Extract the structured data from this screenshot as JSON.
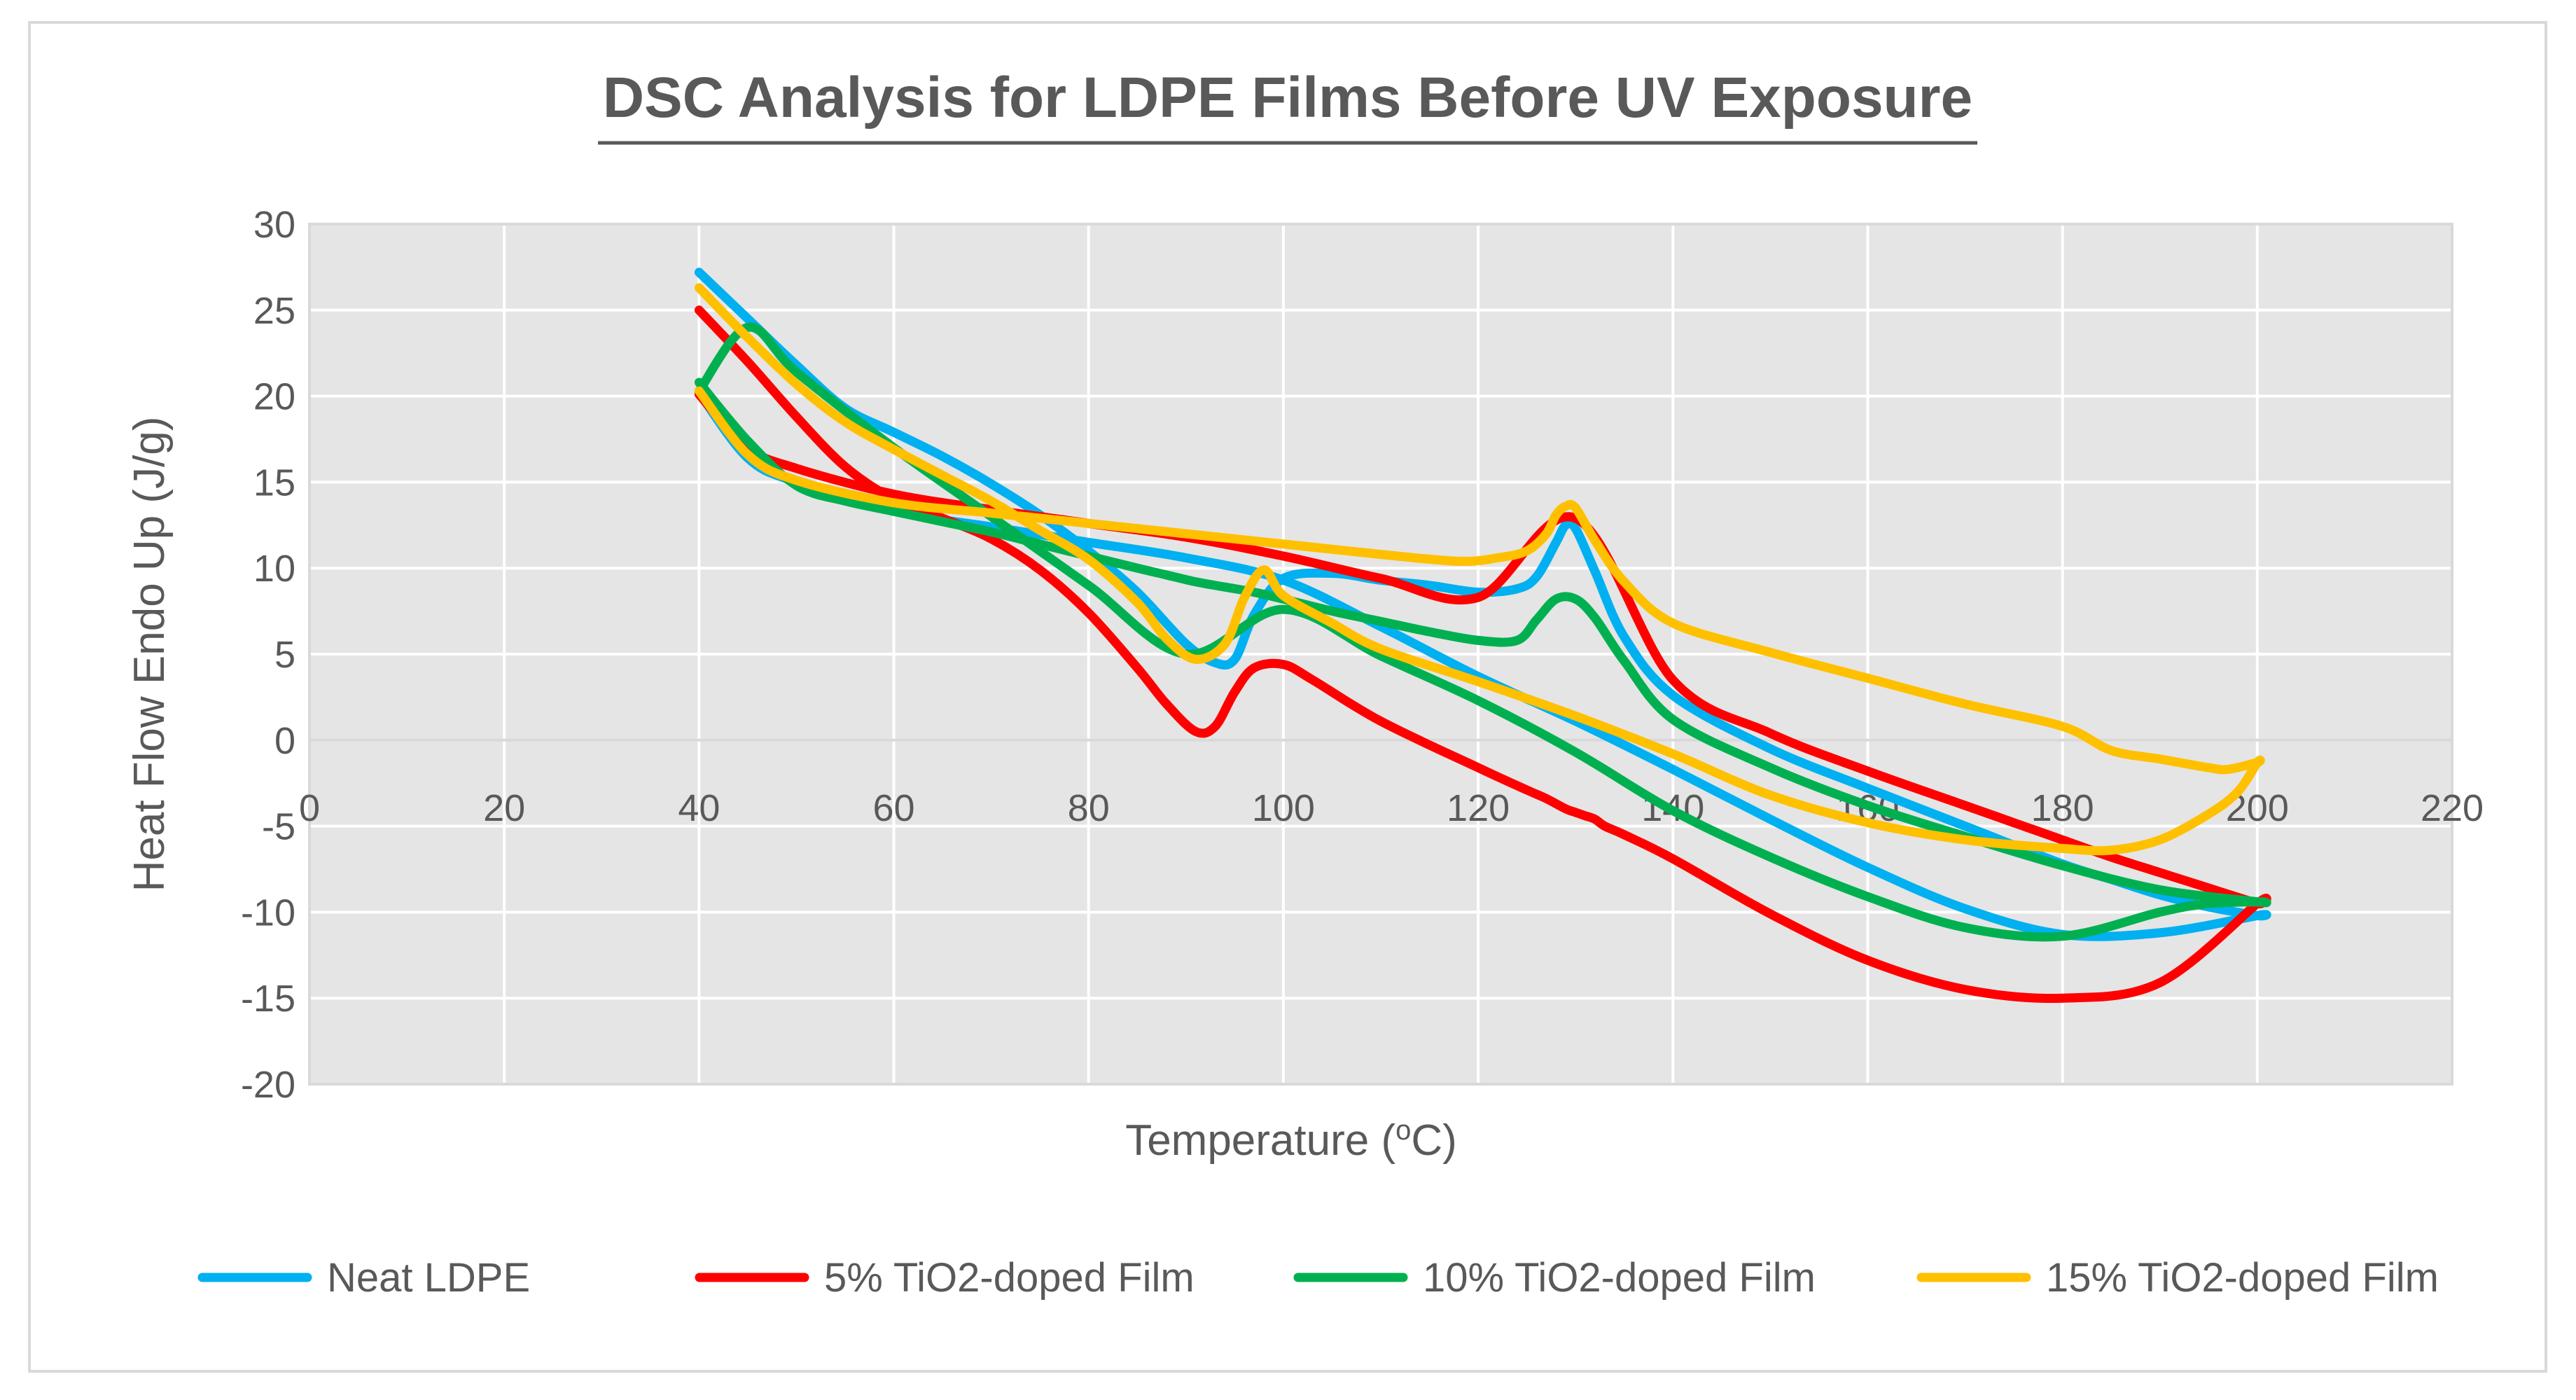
{
  "chart_data": {
    "type": "line",
    "title": "DSC Analysis for LDPE Films Before UV Exposure",
    "xlabel": "Temperature (oC)",
    "xlabel_parts": {
      "before": "Temperature (",
      "sup": "o",
      "after": "C)"
    },
    "ylabel": "Heat Flow Endo Up (J/g)",
    "xlim": [
      0,
      220
    ],
    "ylim": [
      -20,
      30
    ],
    "xticks": [
      0,
      20,
      40,
      60,
      80,
      100,
      120,
      140,
      160,
      180,
      200,
      220
    ],
    "yticks": [
      30,
      25,
      20,
      15,
      10,
      5,
      0,
      -5,
      -10,
      -15,
      -20
    ],
    "grid": true,
    "legend_position": "bottom",
    "series": [
      {
        "name": "Neat LDPE",
        "color": "#00B0F0",
        "x": [
          40,
          45,
          50,
          55,
          60,
          65,
          70,
          75,
          80,
          85,
          90,
          93,
          95,
          97,
          100,
          105,
          110,
          115,
          120,
          124,
          126,
          128,
          129,
          130,
          132,
          135,
          140,
          150,
          160,
          170,
          180,
          185,
          190,
          195,
          200,
          200,
          190,
          180,
          170,
          160,
          150,
          140,
          130,
          120,
          110,
          100,
          90,
          80,
          70,
          60,
          50,
          45,
          40
        ],
        "y": [
          27.2,
          24.5,
          21.8,
          19.3,
          17.9,
          16.5,
          14.9,
          13.1,
          11.0,
          8.6,
          5.6,
          4.5,
          4.7,
          7.3,
          9.4,
          9.7,
          9.3,
          9.0,
          8.6,
          8.8,
          9.5,
          11.5,
          12.5,
          12.3,
          9.8,
          6.0,
          2.6,
          -0.5,
          -2.8,
          -5.0,
          -7.2,
          -8.1,
          -9.0,
          -9.7,
          -10.2,
          -10.2,
          -11.2,
          -11.3,
          -9.8,
          -7.4,
          -4.6,
          -1.7,
          1.1,
          3.7,
          6.6,
          9.3,
          10.6,
          11.5,
          12.4,
          13.3,
          15.0,
          16.4,
          20.2
        ]
      },
      {
        "name": "5% TiO2-doped Film",
        "color": "#FF0000",
        "x": [
          40,
          45,
          50,
          55,
          60,
          65,
          70,
          75,
          80,
          85,
          88,
          91,
          93,
          95,
          97,
          100,
          103,
          110,
          120,
          125,
          127,
          129,
          130,
          131,
          132,
          133,
          135,
          140,
          150,
          160,
          170,
          180,
          190,
          200,
          200,
          195,
          190,
          185,
          180,
          175,
          170,
          160,
          150,
          140,
          130,
          120,
          110,
          100,
          90,
          80,
          70,
          60,
          50,
          45,
          40
        ],
        "y": [
          25.0,
          22.0,
          18.8,
          15.9,
          14.0,
          12.9,
          11.7,
          9.9,
          7.4,
          4.2,
          2.1,
          0.5,
          0.8,
          2.8,
          4.2,
          4.4,
          3.5,
          1.1,
          -1.6,
          -2.9,
          -3.4,
          -4.0,
          -4.2,
          -4.4,
          -4.6,
          -5.0,
          -5.5,
          -6.9,
          -10.1,
          -12.8,
          -14.5,
          -15.0,
          -14.1,
          -9.5,
          -9.5,
          -8.6,
          -7.7,
          -6.8,
          -5.8,
          -4.8,
          -3.8,
          -1.8,
          0.4,
          3.5,
          12.9,
          8.3,
          9.4,
          10.7,
          11.8,
          12.6,
          13.4,
          14.3,
          15.8,
          17.0,
          20.1
        ]
      },
      {
        "name": "10% TiO2-doped Film",
        "color": "#00B050",
        "x": [
          40,
          45,
          50,
          55,
          60,
          65,
          70,
          75,
          80,
          85,
          88,
          91,
          94,
          97,
          100,
          105,
          110,
          115,
          120,
          124,
          126,
          128,
          130,
          132,
          135,
          140,
          150,
          160,
          170,
          180,
          190,
          200,
          200,
          195,
          190,
          180,
          170,
          160,
          150,
          140,
          130,
          120,
          110,
          100,
          90,
          80,
          70,
          60,
          50,
          45,
          40
        ],
        "y": [
          20.8,
          17.4,
          14.8,
          13.9,
          13.3,
          12.7,
          12.1,
          11.4,
          10.7,
          10.0,
          9.6,
          9.2,
          8.9,
          8.6,
          8.2,
          7.5,
          6.9,
          6.3,
          5.8,
          5.8,
          7.0,
          8.2,
          8.2,
          7.1,
          4.6,
          1.2,
          -1.6,
          -3.8,
          -5.6,
          -7.3,
          -8.7,
          -9.4,
          -9.4,
          -9.5,
          -10.0,
          -11.4,
          -10.9,
          -9.1,
          -6.8,
          -4.1,
          -0.7,
          2.3,
          4.9,
          7.6,
          5.0,
          9.0,
          13.0,
          17.0,
          21.4,
          24.0,
          20.3
        ]
      },
      {
        "name": "15% TiO2-doped Film",
        "color": "#FFC000",
        "x": [
          40,
          45,
          50,
          55,
          60,
          65,
          70,
          75,
          80,
          85,
          88,
          91,
          94,
          96,
          98,
          100,
          105,
          110,
          120,
          130,
          140,
          150,
          160,
          170,
          180,
          185,
          190,
          195,
          198,
          200,
          200,
          197,
          195,
          190,
          185,
          180,
          170,
          160,
          150,
          140,
          135,
          132,
          130,
          129,
          128,
          127,
          125,
          122,
          118,
          110,
          100,
          90,
          80,
          70,
          60,
          50,
          45,
          40
        ],
        "y": [
          26.3,
          23.4,
          20.7,
          18.5,
          16.9,
          15.4,
          13.9,
          12.2,
          10.5,
          8.0,
          5.9,
          4.7,
          5.6,
          8.3,
          9.9,
          8.4,
          6.8,
          5.3,
          3.4,
          1.4,
          -0.8,
          -3.2,
          -4.8,
          -5.8,
          -6.3,
          -6.4,
          -5.8,
          -4.3,
          -3.0,
          -1.3,
          -1.3,
          -1.7,
          -1.6,
          -1.1,
          -0.6,
          0.8,
          2.1,
          3.6,
          5.1,
          6.8,
          9.2,
          11.6,
          13.5,
          13.6,
          13.1,
          12.0,
          11.0,
          10.6,
          10.4,
          10.8,
          11.4,
          12.0,
          12.6,
          13.2,
          13.8,
          15.1,
          16.6,
          20.3
        ]
      }
    ]
  }
}
